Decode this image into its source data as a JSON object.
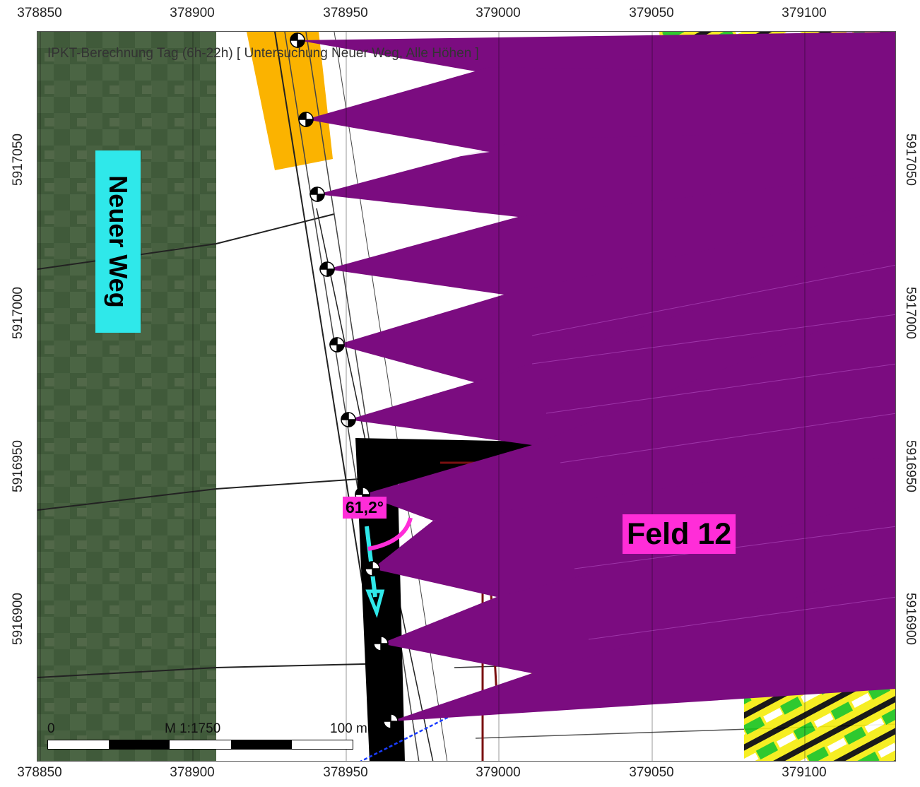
{
  "map": {
    "title": "IPKT-Berechnung Tag (6h-22h) [ Untersuchung Neuer Weg, Alle Höhen ]",
    "road_label": "Neuer Weg",
    "field_label": "Feld 12",
    "angle_label": "61,2°",
    "scale": {
      "zero": "0",
      "ratio": "M 1:1750",
      "distance": "100 m"
    }
  },
  "axes": {
    "x_ticks": [
      "378850",
      "378900",
      "378950",
      "379000",
      "379050",
      "379100"
    ],
    "y_ticks": [
      "5917050",
      "5917000",
      "5916950",
      "5916900"
    ]
  },
  "colors": {
    "purple": "#7b0c80",
    "magenta": "#ff2dd8",
    "cyan": "#2fe8ea",
    "green": "#18c318",
    "yellow": "#f5ec0a",
    "orange": "#fbb300",
    "red": "#ff1010",
    "satellite": "#455f3f",
    "dark_red": "#7a1010",
    "blue": "#1a3cff"
  }
}
